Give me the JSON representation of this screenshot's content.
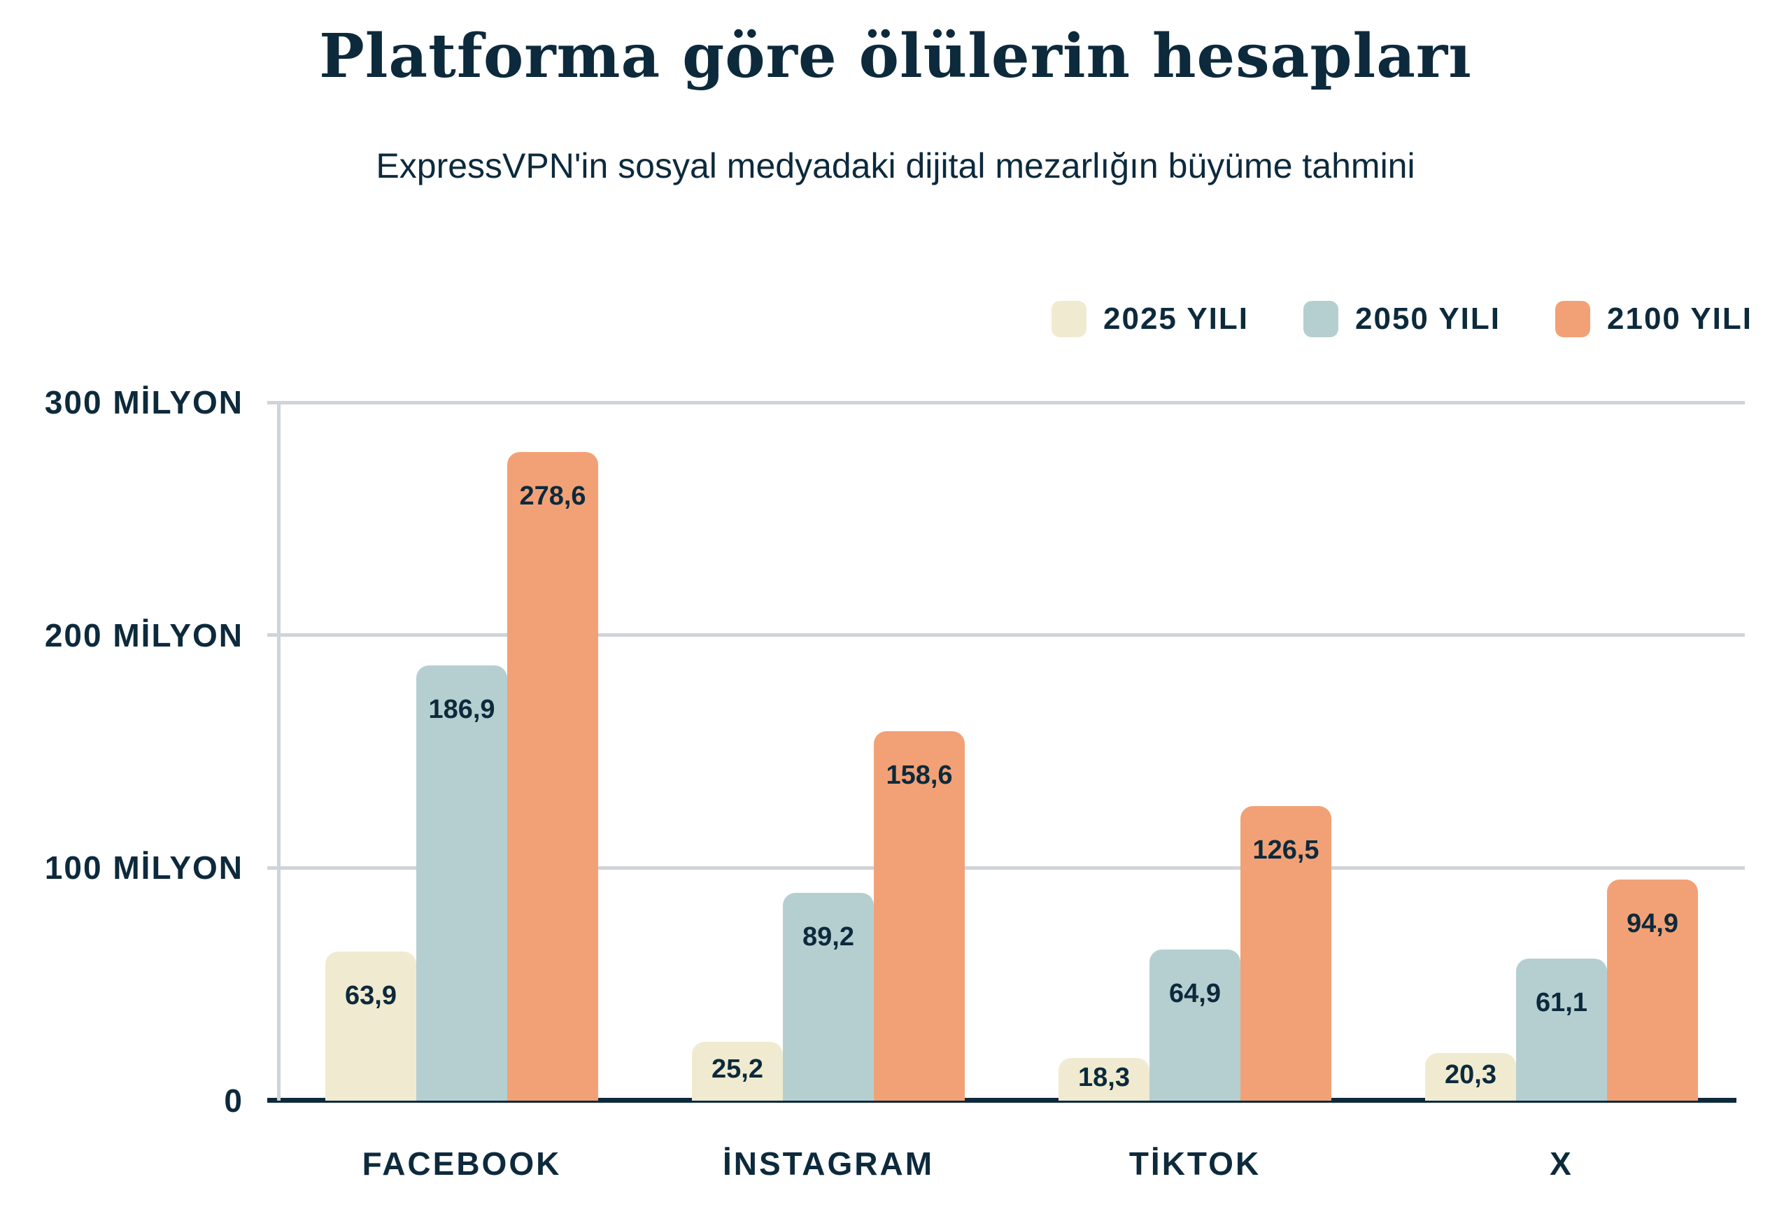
{
  "title": "Platforma göre ölülerin hesapları",
  "subtitle": "ExpressVPN'in sosyal medyadaki dijital mezarlığın büyüme tahmini",
  "colors": {
    "navy": "#0d2a3c",
    "cream": "#f0ebd0",
    "blue": "#b5cfd1",
    "orange": "#f2a176",
    "grid": "#cfd4d9",
    "background": "#ffffff"
  },
  "legend": [
    {
      "label": "2025 YILI",
      "color_key": "cream"
    },
    {
      "label": "2050 YILI",
      "color_key": "blue"
    },
    {
      "label": "2100 YILI",
      "color_key": "orange"
    }
  ],
  "chart_data": {
    "type": "bar",
    "categories": [
      "FACEBOOK",
      "İNSTAGRAM",
      "TİKTOK",
      "X"
    ],
    "series": [
      {
        "name": "2025 YILI",
        "color_key": "cream",
        "values": [
          63.9,
          25.2,
          18.3,
          20.3
        ],
        "value_labels": [
          "63,9",
          "25,2",
          "18,3",
          "20,3"
        ]
      },
      {
        "name": "2050 YILI",
        "color_key": "blue",
        "values": [
          186.9,
          89.2,
          64.9,
          61.1
        ],
        "value_labels": [
          "186,9",
          "89,2",
          "64,9",
          "61,1"
        ]
      },
      {
        "name": "2100 YILI",
        "color_key": "orange",
        "values": [
          278.6,
          158.6,
          126.5,
          94.9
        ],
        "value_labels": [
          "278,6",
          "158,6",
          "126,5",
          "94,9"
        ]
      }
    ],
    "unit": "milyon hesap",
    "ylim": [
      0,
      300
    ],
    "y_ticks": [
      {
        "value": 300,
        "label": "300 MİLYON"
      },
      {
        "value": 200,
        "label": "200 MİLYON"
      },
      {
        "value": 100,
        "label": "100 MİLYON"
      },
      {
        "value": 0,
        "label": "0"
      }
    ],
    "grid": true,
    "legend_position": "top-right"
  }
}
